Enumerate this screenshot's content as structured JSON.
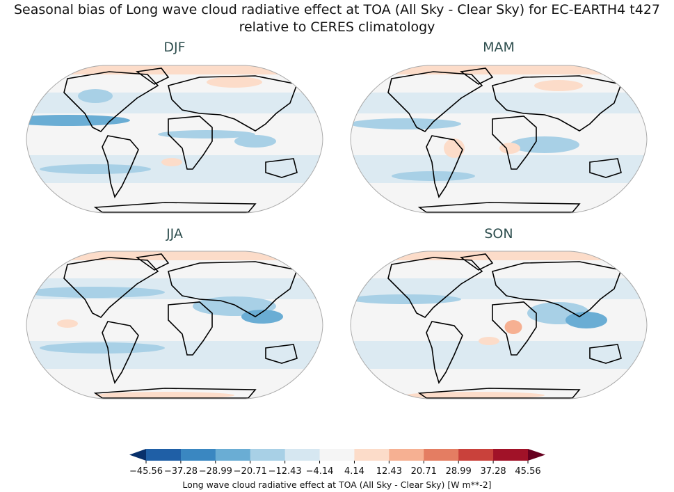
{
  "title_line1": "Seasonal bias of Long wave cloud radiative effect at TOA (All Sky - Clear Sky) for EC-EARTH4 t427",
  "title_line2": "relative to CERES climatology",
  "panels": [
    {
      "label": "DJF"
    },
    {
      "label": "MAM"
    },
    {
      "label": "JJA"
    },
    {
      "label": "SON"
    }
  ],
  "colorbar": {
    "ticks": [
      "−45.56",
      "−37.28",
      "−28.99",
      "−20.71",
      "−12.43",
      "−4.14",
      "4.14",
      "12.43",
      "20.71",
      "28.99",
      "37.28",
      "45.56"
    ],
    "colors": [
      "#08306b",
      "#1f5fa6",
      "#3a87c1",
      "#6aadd4",
      "#a8d0e6",
      "#d6e7f1",
      "#f5f5f5",
      "#fcdcc9",
      "#f6b092",
      "#e47d62",
      "#c9413b",
      "#a11228",
      "#67001f"
    ],
    "label": "Long wave cloud radiative effect at TOA (All Sky - Clear Sky) [W m**-2]",
    "extend": "both"
  }
}
